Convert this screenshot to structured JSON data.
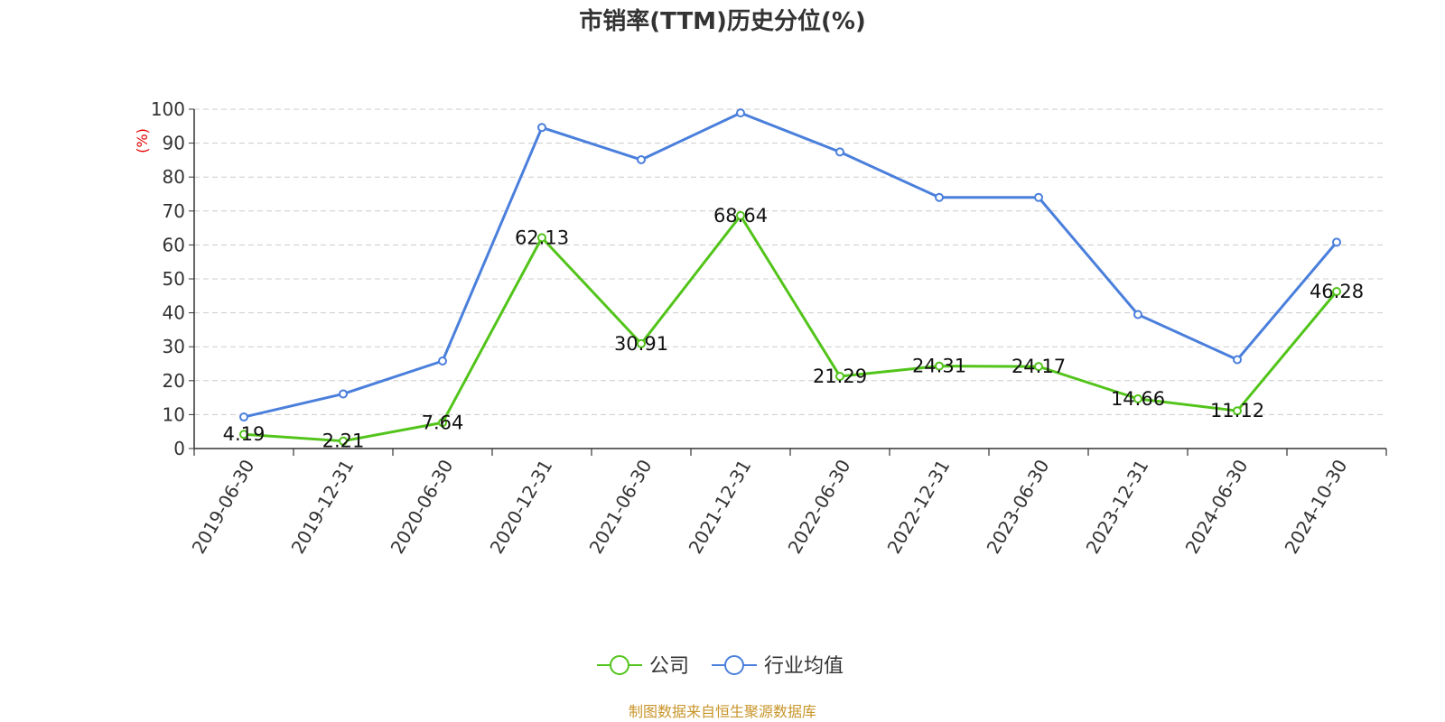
{
  "chart_data": {
    "type": "line",
    "title": "市销率(TTM)历史分位(%)",
    "ylabel": "(%)",
    "ylim": [
      0,
      100
    ],
    "yticks": [
      0,
      10,
      20,
      30,
      40,
      50,
      60,
      70,
      80,
      90,
      100
    ],
    "x": [
      "2019-06-30",
      "2019-12-31",
      "2020-06-30",
      "2020-12-31",
      "2021-06-30",
      "2021-12-31",
      "2022-06-30",
      "2022-12-31",
      "2023-06-30",
      "2023-12-31",
      "2024-06-30",
      "2024-10-30"
    ],
    "grid": true,
    "legend_position": "bottom-center",
    "series": [
      {
        "name": "公司",
        "color": "#52c41a",
        "values": [
          4.19,
          2.21,
          7.64,
          62.13,
          30.91,
          68.64,
          21.29,
          24.31,
          24.17,
          14.66,
          11.12,
          46.28
        ],
        "labels": [
          "4.19",
          "2.21",
          "7.64",
          "62.13",
          "30.91",
          "68.64",
          "21.29",
          "24.31",
          "24.17",
          "14.66",
          "11.12",
          "46.28"
        ]
      },
      {
        "name": "行业均值",
        "color": "#4a7fdc",
        "values": [
          9.3,
          16.1,
          25.8,
          94.6,
          85.1,
          98.9,
          87.4,
          74.0,
          74.0,
          39.5,
          26.2,
          60.8
        ]
      }
    ]
  },
  "source": "制图数据来自恒生聚源数据库"
}
